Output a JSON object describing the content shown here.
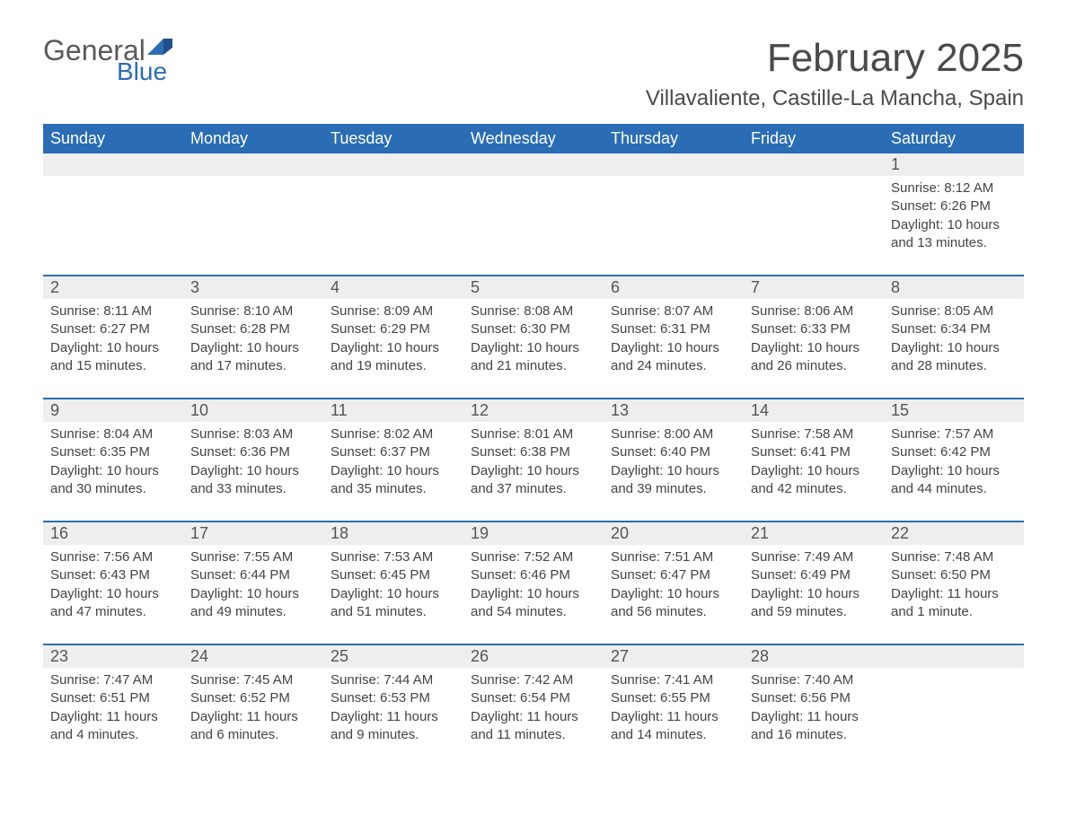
{
  "logo": {
    "word1": "General",
    "word2": "Blue",
    "brand_color": "#2a6db5"
  },
  "title": "February 2025",
  "location": "Villavaliente, Castille-La Mancha, Spain",
  "day_headers": [
    "Sunday",
    "Monday",
    "Tuesday",
    "Wednesday",
    "Thursday",
    "Friday",
    "Saturday"
  ],
  "colors": {
    "header_bg": "#2a6db5",
    "header_text": "#ffffff",
    "daynum_bg": "#eeeeee",
    "text": "#444444",
    "page_bg": "#ffffff"
  },
  "typography": {
    "title_fontsize": 44,
    "location_fontsize": 24,
    "dayhead_fontsize": 18,
    "daynum_fontsize": 18,
    "cell_fontsize": 15
  },
  "weeks": [
    [
      {
        "n": "",
        "sr": "",
        "ss": "",
        "dl": ""
      },
      {
        "n": "",
        "sr": "",
        "ss": "",
        "dl": ""
      },
      {
        "n": "",
        "sr": "",
        "ss": "",
        "dl": ""
      },
      {
        "n": "",
        "sr": "",
        "ss": "",
        "dl": ""
      },
      {
        "n": "",
        "sr": "",
        "ss": "",
        "dl": ""
      },
      {
        "n": "",
        "sr": "",
        "ss": "",
        "dl": ""
      },
      {
        "n": "1",
        "sr": "Sunrise: 8:12 AM",
        "ss": "Sunset: 6:26 PM",
        "dl": "Daylight: 10 hours and 13 minutes."
      }
    ],
    [
      {
        "n": "2",
        "sr": "Sunrise: 8:11 AM",
        "ss": "Sunset: 6:27 PM",
        "dl": "Daylight: 10 hours and 15 minutes."
      },
      {
        "n": "3",
        "sr": "Sunrise: 8:10 AM",
        "ss": "Sunset: 6:28 PM",
        "dl": "Daylight: 10 hours and 17 minutes."
      },
      {
        "n": "4",
        "sr": "Sunrise: 8:09 AM",
        "ss": "Sunset: 6:29 PM",
        "dl": "Daylight: 10 hours and 19 minutes."
      },
      {
        "n": "5",
        "sr": "Sunrise: 8:08 AM",
        "ss": "Sunset: 6:30 PM",
        "dl": "Daylight: 10 hours and 21 minutes."
      },
      {
        "n": "6",
        "sr": "Sunrise: 8:07 AM",
        "ss": "Sunset: 6:31 PM",
        "dl": "Daylight: 10 hours and 24 minutes."
      },
      {
        "n": "7",
        "sr": "Sunrise: 8:06 AM",
        "ss": "Sunset: 6:33 PM",
        "dl": "Daylight: 10 hours and 26 minutes."
      },
      {
        "n": "8",
        "sr": "Sunrise: 8:05 AM",
        "ss": "Sunset: 6:34 PM",
        "dl": "Daylight: 10 hours and 28 minutes."
      }
    ],
    [
      {
        "n": "9",
        "sr": "Sunrise: 8:04 AM",
        "ss": "Sunset: 6:35 PM",
        "dl": "Daylight: 10 hours and 30 minutes."
      },
      {
        "n": "10",
        "sr": "Sunrise: 8:03 AM",
        "ss": "Sunset: 6:36 PM",
        "dl": "Daylight: 10 hours and 33 minutes."
      },
      {
        "n": "11",
        "sr": "Sunrise: 8:02 AM",
        "ss": "Sunset: 6:37 PM",
        "dl": "Daylight: 10 hours and 35 minutes."
      },
      {
        "n": "12",
        "sr": "Sunrise: 8:01 AM",
        "ss": "Sunset: 6:38 PM",
        "dl": "Daylight: 10 hours and 37 minutes."
      },
      {
        "n": "13",
        "sr": "Sunrise: 8:00 AM",
        "ss": "Sunset: 6:40 PM",
        "dl": "Daylight: 10 hours and 39 minutes."
      },
      {
        "n": "14",
        "sr": "Sunrise: 7:58 AM",
        "ss": "Sunset: 6:41 PM",
        "dl": "Daylight: 10 hours and 42 minutes."
      },
      {
        "n": "15",
        "sr": "Sunrise: 7:57 AM",
        "ss": "Sunset: 6:42 PM",
        "dl": "Daylight: 10 hours and 44 minutes."
      }
    ],
    [
      {
        "n": "16",
        "sr": "Sunrise: 7:56 AM",
        "ss": "Sunset: 6:43 PM",
        "dl": "Daylight: 10 hours and 47 minutes."
      },
      {
        "n": "17",
        "sr": "Sunrise: 7:55 AM",
        "ss": "Sunset: 6:44 PM",
        "dl": "Daylight: 10 hours and 49 minutes."
      },
      {
        "n": "18",
        "sr": "Sunrise: 7:53 AM",
        "ss": "Sunset: 6:45 PM",
        "dl": "Daylight: 10 hours and 51 minutes."
      },
      {
        "n": "19",
        "sr": "Sunrise: 7:52 AM",
        "ss": "Sunset: 6:46 PM",
        "dl": "Daylight: 10 hours and 54 minutes."
      },
      {
        "n": "20",
        "sr": "Sunrise: 7:51 AM",
        "ss": "Sunset: 6:47 PM",
        "dl": "Daylight: 10 hours and 56 minutes."
      },
      {
        "n": "21",
        "sr": "Sunrise: 7:49 AM",
        "ss": "Sunset: 6:49 PM",
        "dl": "Daylight: 10 hours and 59 minutes."
      },
      {
        "n": "22",
        "sr": "Sunrise: 7:48 AM",
        "ss": "Sunset: 6:50 PM",
        "dl": "Daylight: 11 hours and 1 minute."
      }
    ],
    [
      {
        "n": "23",
        "sr": "Sunrise: 7:47 AM",
        "ss": "Sunset: 6:51 PM",
        "dl": "Daylight: 11 hours and 4 minutes."
      },
      {
        "n": "24",
        "sr": "Sunrise: 7:45 AM",
        "ss": "Sunset: 6:52 PM",
        "dl": "Daylight: 11 hours and 6 minutes."
      },
      {
        "n": "25",
        "sr": "Sunrise: 7:44 AM",
        "ss": "Sunset: 6:53 PM",
        "dl": "Daylight: 11 hours and 9 minutes."
      },
      {
        "n": "26",
        "sr": "Sunrise: 7:42 AM",
        "ss": "Sunset: 6:54 PM",
        "dl": "Daylight: 11 hours and 11 minutes."
      },
      {
        "n": "27",
        "sr": "Sunrise: 7:41 AM",
        "ss": "Sunset: 6:55 PM",
        "dl": "Daylight: 11 hours and 14 minutes."
      },
      {
        "n": "28",
        "sr": "Sunrise: 7:40 AM",
        "ss": "Sunset: 6:56 PM",
        "dl": "Daylight: 11 hours and 16 minutes."
      },
      {
        "n": "",
        "sr": "",
        "ss": "",
        "dl": ""
      }
    ]
  ]
}
